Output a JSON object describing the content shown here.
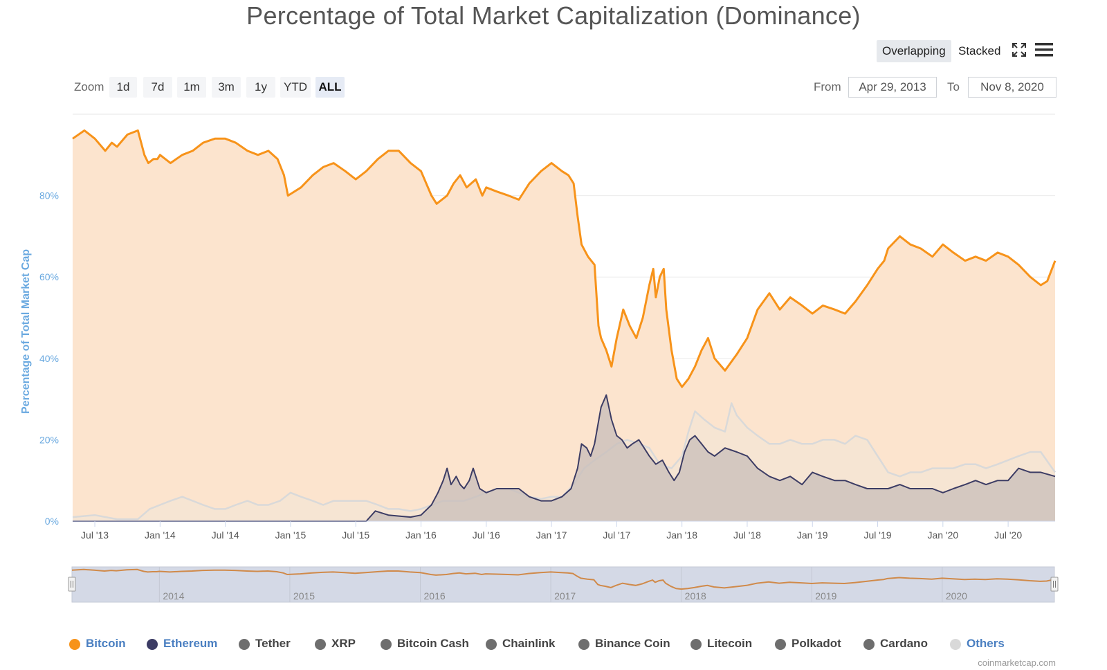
{
  "title": "Percentage of Total Market Capitalization (Dominance)",
  "toolbar": {
    "overlapping": "Overlapping",
    "stacked": "Stacked",
    "fullscreen_icon": "fullscreen-icon",
    "menu_icon": "hamburger-menu-icon"
  },
  "zoom": {
    "label": "Zoom",
    "buttons": [
      "1d",
      "7d",
      "1m",
      "3m",
      "1y",
      "YTD",
      "ALL"
    ],
    "active": "ALL"
  },
  "range": {
    "from_label": "From",
    "from_value": "Apr 29, 2013",
    "to_label": "To",
    "to_value": "Nov 8, 2020"
  },
  "colors": {
    "bitcoin": "#f7931a",
    "ethereum": "#3c3c64",
    "others": "#d9d9d9",
    "grey_series": "#6e6e6e",
    "axis_text": "#6aa9e0"
  },
  "legend": [
    {
      "name": "Bitcoin",
      "color": "#f7931a",
      "text_color": "#4a7fc1"
    },
    {
      "name": "Ethereum",
      "color": "#3c3c64",
      "text_color": "#4a7fc1"
    },
    {
      "name": "Tether",
      "color": "#6e6e6e",
      "text_color": "#444444"
    },
    {
      "name": "XRP",
      "color": "#6e6e6e",
      "text_color": "#444444"
    },
    {
      "name": "Bitcoin Cash",
      "color": "#6e6e6e",
      "text_color": "#444444"
    },
    {
      "name": "Chainlink",
      "color": "#6e6e6e",
      "text_color": "#444444"
    },
    {
      "name": "Binance Coin",
      "color": "#6e6e6e",
      "text_color": "#444444"
    },
    {
      "name": "Litecoin",
      "color": "#6e6e6e",
      "text_color": "#444444"
    },
    {
      "name": "Polkadot",
      "color": "#6e6e6e",
      "text_color": "#444444"
    },
    {
      "name": "Cardano",
      "color": "#6e6e6e",
      "text_color": "#444444"
    },
    {
      "name": "Others",
      "color": "#d9d9d9",
      "text_color": "#4a7fc1"
    }
  ],
  "credits": "coinmarketcap.com",
  "chart_data": {
    "type": "area",
    "title": "Percentage of Total Market Capitalization (Dominance)",
    "ylabel": "Percentage of Total Market Cap",
    "xlabel": "",
    "ylim": [
      0,
      100
    ],
    "yticks": [
      "0%",
      "20%",
      "40%",
      "60%",
      "80%"
    ],
    "ytick_values": [
      0,
      20,
      40,
      60,
      80
    ],
    "xticks": [
      "Jul '13",
      "Jan '14",
      "Jul '14",
      "Jan '15",
      "Jul '15",
      "Jan '16",
      "Jul '16",
      "Jan '17",
      "Jul '17",
      "Jan '18",
      "Jul '18",
      "Jan '19",
      "Jul '19",
      "Jan '20",
      "Jul '20"
    ],
    "xtick_values": [
      2013.5,
      2014.0,
      2014.5,
      2015.0,
      2015.5,
      2016.0,
      2016.5,
      2017.0,
      2017.5,
      2018.0,
      2018.5,
      2019.0,
      2019.5,
      2020.0,
      2020.5
    ],
    "xlim": [
      2013.33,
      2020.86
    ],
    "navigator_labels": [
      "2014",
      "2015",
      "2016",
      "2017",
      "2018",
      "2019",
      "2020"
    ],
    "navigator_values": [
      2014,
      2015,
      2016,
      2017,
      2018,
      2019,
      2020
    ],
    "grid": true,
    "legend_position": "bottom",
    "series": [
      {
        "name": "Bitcoin",
        "x": [
          2013.33,
          2013.42,
          2013.5,
          2013.58,
          2013.63,
          2013.67,
          2013.75,
          2013.83,
          2013.88,
          2013.91,
          2013.95,
          2013.98,
          2014.0,
          2014.08,
          2014.17,
          2014.25,
          2014.33,
          2014.42,
          2014.5,
          2014.58,
          2014.67,
          2014.75,
          2014.83,
          2014.9,
          2014.95,
          2014.98,
          2015.08,
          2015.17,
          2015.25,
          2015.33,
          2015.42,
          2015.5,
          2015.58,
          2015.67,
          2015.75,
          2015.83,
          2015.92,
          2016.0,
          2016.08,
          2016.12,
          2016.2,
          2016.25,
          2016.3,
          2016.35,
          2016.42,
          2016.47,
          2016.5,
          2016.58,
          2016.67,
          2016.75,
          2016.83,
          2016.92,
          2017.0,
          2017.08,
          2017.13,
          2017.17,
          2017.2,
          2017.23,
          2017.28,
          2017.33,
          2017.36,
          2017.38,
          2017.42,
          2017.46,
          2017.5,
          2017.55,
          2017.6,
          2017.65,
          2017.7,
          2017.75,
          2017.78,
          2017.8,
          2017.83,
          2017.86,
          2017.88,
          2017.92,
          2017.96,
          2018.0,
          2018.05,
          2018.1,
          2018.15,
          2018.2,
          2018.25,
          2018.33,
          2018.42,
          2018.5,
          2018.58,
          2018.67,
          2018.75,
          2018.83,
          2018.92,
          2019.0,
          2019.08,
          2019.17,
          2019.25,
          2019.33,
          2019.42,
          2019.5,
          2019.55,
          2019.58,
          2019.67,
          2019.75,
          2019.83,
          2019.92,
          2020.0,
          2020.08,
          2020.17,
          2020.25,
          2020.33,
          2020.42,
          2020.5,
          2020.58,
          2020.67,
          2020.75,
          2020.8,
          2020.86
        ],
        "values": [
          94,
          96,
          94,
          91,
          93,
          92,
          95,
          96,
          90,
          88,
          89,
          89,
          90,
          88,
          90,
          91,
          93,
          94,
          94,
          93,
          91,
          90,
          91,
          89,
          85,
          80,
          82,
          85,
          87,
          88,
          86,
          84,
          86,
          89,
          91,
          91,
          88,
          86,
          80,
          78,
          80,
          83,
          85,
          82,
          84,
          80,
          82,
          81,
          80,
          79,
          83,
          86,
          88,
          86,
          85,
          83,
          75,
          68,
          65,
          63,
          48,
          45,
          42,
          38,
          45,
          52,
          48,
          45,
          50,
          58,
          62,
          55,
          60,
          62,
          52,
          42,
          35,
          33,
          35,
          38,
          42,
          45,
          40,
          37,
          41,
          45,
          52,
          56,
          52,
          55,
          53,
          51,
          53,
          52,
          51,
          54,
          58,
          62,
          64,
          67,
          70,
          68,
          67,
          65,
          68,
          66,
          64,
          65,
          64,
          66,
          65,
          63,
          60,
          58,
          59,
          64
        ]
      },
      {
        "name": "Ethereum",
        "x": [
          2013.33,
          2015.58,
          2015.65,
          2015.75,
          2015.92,
          2016.0,
          2016.08,
          2016.13,
          2016.17,
          2016.2,
          2016.23,
          2016.27,
          2016.3,
          2016.33,
          2016.37,
          2016.4,
          2016.45,
          2016.5,
          2016.58,
          2016.67,
          2016.75,
          2016.83,
          2016.92,
          2017.0,
          2017.08,
          2017.15,
          2017.2,
          2017.23,
          2017.27,
          2017.3,
          2017.33,
          2017.38,
          2017.42,
          2017.46,
          2017.5,
          2017.54,
          2017.58,
          2017.62,
          2017.67,
          2017.71,
          2017.75,
          2017.8,
          2017.85,
          2017.9,
          2017.94,
          2017.98,
          2018.02,
          2018.06,
          2018.1,
          2018.15,
          2018.2,
          2018.25,
          2018.33,
          2018.42,
          2018.5,
          2018.58,
          2018.67,
          2018.75,
          2018.83,
          2018.92,
          2019.0,
          2019.08,
          2019.17,
          2019.25,
          2019.33,
          2019.42,
          2019.5,
          2019.58,
          2019.67,
          2019.75,
          2019.83,
          2019.92,
          2020.0,
          2020.08,
          2020.17,
          2020.25,
          2020.33,
          2020.42,
          2020.5,
          2020.58,
          2020.67,
          2020.75,
          2020.86
        ],
        "values": [
          0,
          0,
          2.5,
          1.5,
          1,
          1.5,
          4,
          7,
          10,
          13,
          9,
          11,
          9,
          8,
          10,
          13,
          8,
          7,
          8,
          8,
          8,
          6,
          5,
          5,
          6,
          8,
          13,
          19,
          18,
          16,
          19,
          28,
          31,
          25,
          21,
          20,
          18,
          19,
          20,
          18,
          16,
          14,
          15,
          12,
          10,
          12,
          17,
          20,
          21,
          19,
          17,
          16,
          18,
          17,
          16,
          13,
          11,
          10,
          11,
          9,
          12,
          11,
          10,
          10,
          9,
          8,
          8,
          8,
          9,
          8,
          8,
          8,
          7,
          8,
          9,
          10,
          9,
          10,
          10,
          13,
          12,
          12,
          11
        ]
      },
      {
        "name": "Others",
        "x": [
          2013.33,
          2013.5,
          2013.67,
          2013.83,
          2013.92,
          2014.0,
          2014.08,
          2014.17,
          2014.25,
          2014.33,
          2014.42,
          2014.5,
          2014.58,
          2014.67,
          2014.75,
          2014.83,
          2014.92,
          2015.0,
          2015.08,
          2015.17,
          2015.25,
          2015.33,
          2015.42,
          2015.5,
          2015.58,
          2015.67,
          2015.75,
          2015.83,
          2015.92,
          2016.0,
          2016.08,
          2016.17,
          2016.25,
          2016.33,
          2016.42,
          2016.5,
          2016.58,
          2016.67,
          2016.75,
          2016.83,
          2016.92,
          2017.0,
          2017.08,
          2017.17,
          2017.25,
          2017.33,
          2017.42,
          2017.5,
          2017.58,
          2017.67,
          2017.75,
          2017.83,
          2017.92,
          2018.0,
          2018.05,
          2018.1,
          2018.17,
          2018.25,
          2018.33,
          2018.38,
          2018.42,
          2018.5,
          2018.58,
          2018.67,
          2018.75,
          2018.83,
          2018.92,
          2019.0,
          2019.08,
          2019.17,
          2019.25,
          2019.33,
          2019.42,
          2019.5,
          2019.58,
          2019.67,
          2019.75,
          2019.83,
          2019.92,
          2020.0,
          2020.08,
          2020.17,
          2020.25,
          2020.33,
          2020.42,
          2020.5,
          2020.58,
          2020.67,
          2020.75,
          2020.86
        ],
        "values": [
          1,
          1.5,
          0.5,
          0.5,
          3,
          4,
          5,
          6,
          5,
          4,
          3,
          3,
          4,
          5,
          4,
          4,
          5,
          7,
          6,
          5,
          4,
          5,
          5,
          5,
          5,
          4,
          3,
          3,
          2.5,
          3,
          4,
          5,
          5,
          5,
          6,
          7,
          8,
          8,
          7,
          6,
          5.5,
          6,
          6,
          9,
          13,
          15,
          17,
          19,
          20,
          19,
          18,
          14,
          13,
          16,
          22,
          27,
          25,
          23,
          22,
          29,
          26,
          23,
          21,
          19,
          19,
          20,
          19,
          19,
          20,
          20,
          19,
          21,
          20,
          16,
          12,
          11,
          12,
          12,
          13,
          13,
          13,
          14,
          14,
          13,
          14,
          15,
          16,
          17,
          17,
          12
        ]
      }
    ]
  }
}
